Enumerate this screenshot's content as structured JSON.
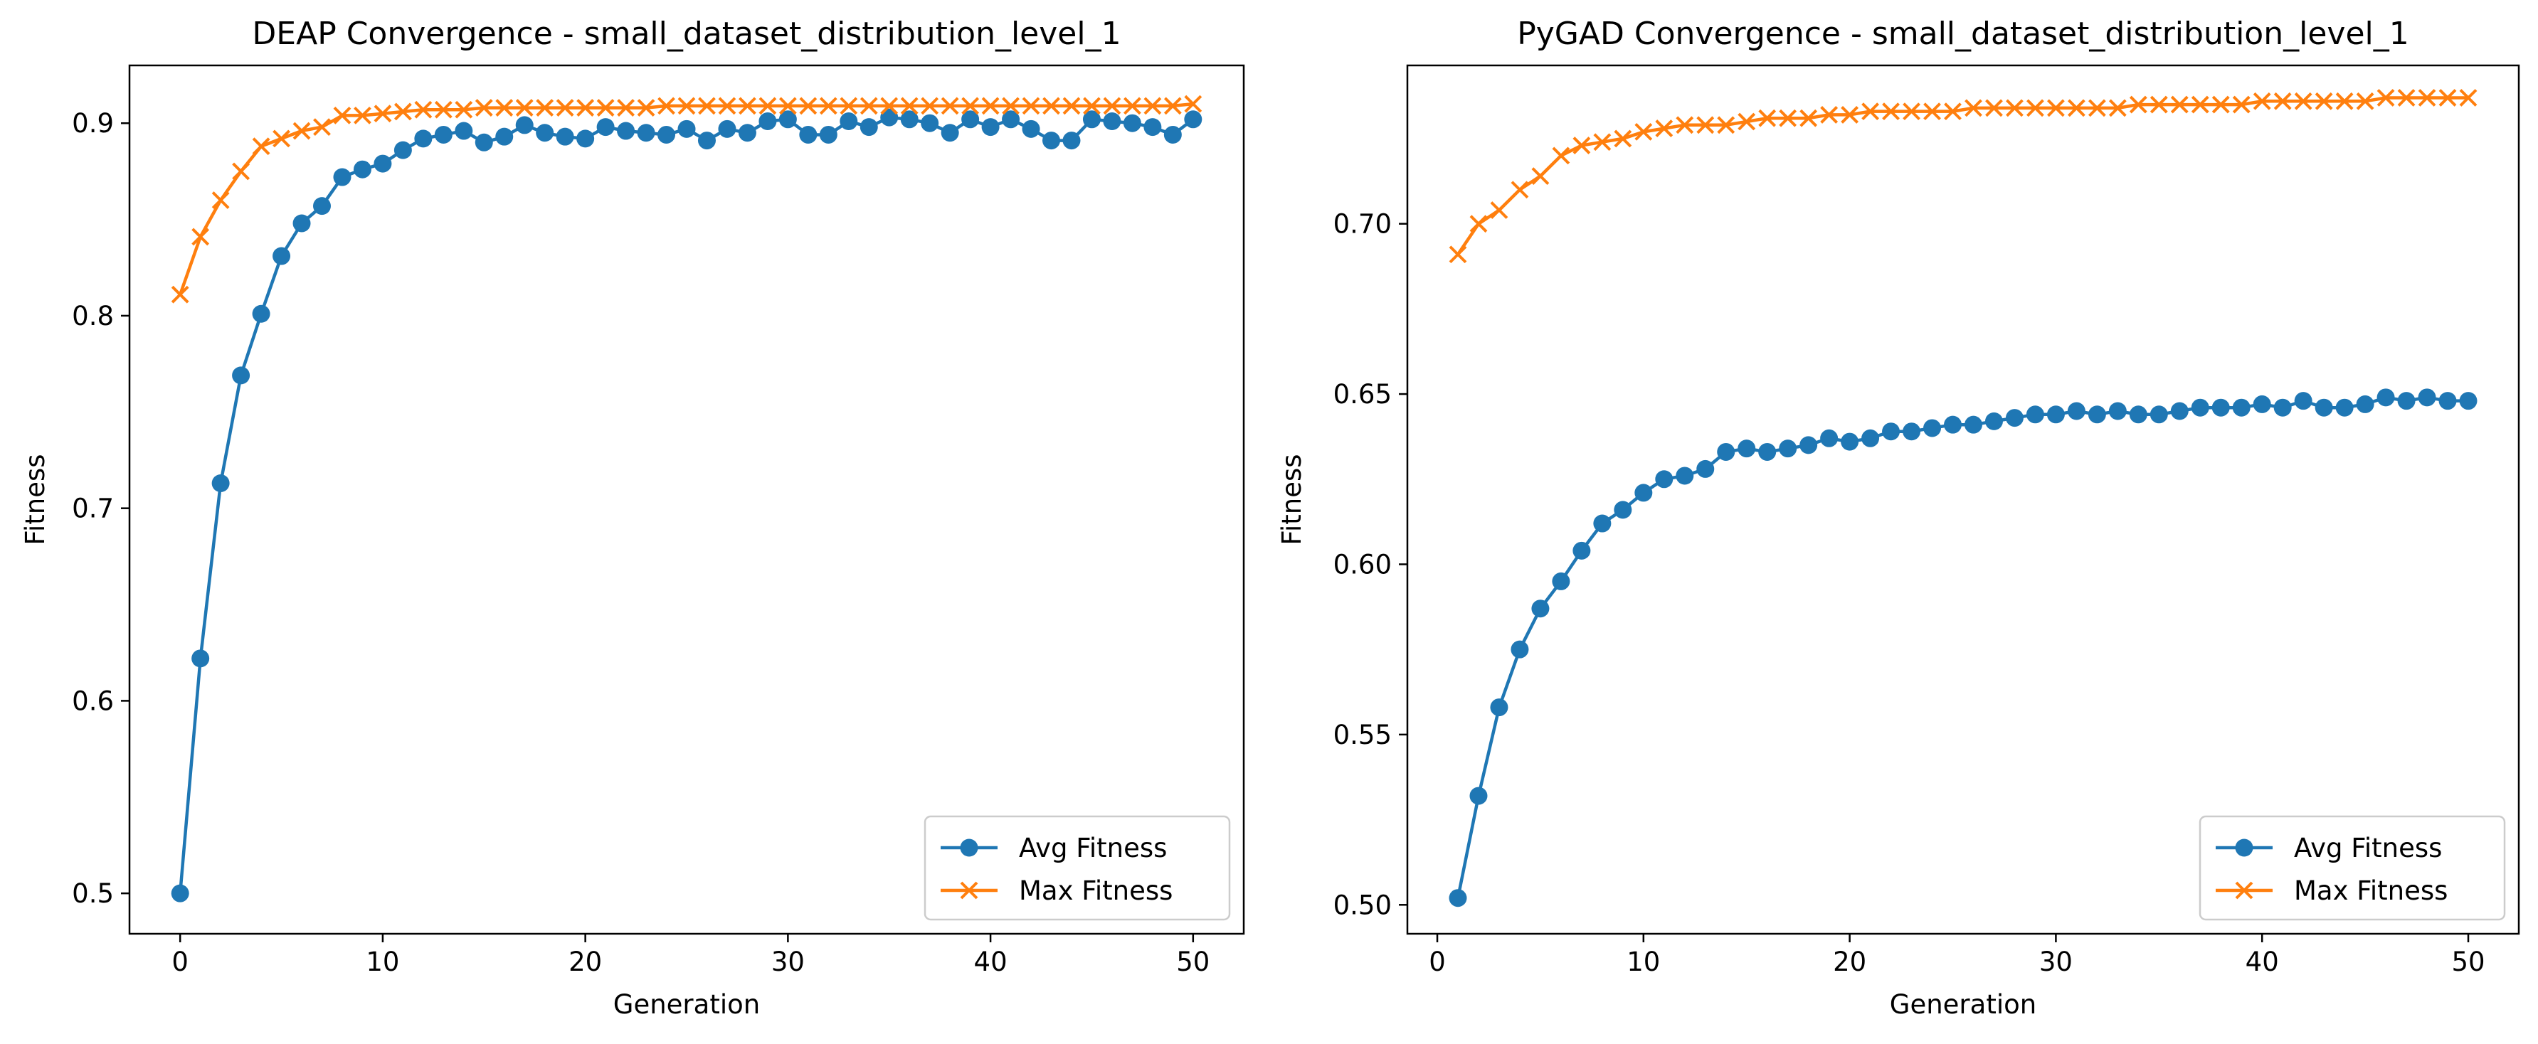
{
  "chart_data": [
    {
      "type": "line",
      "title": "DEAP Convergence - small_dataset_distribution_level_1",
      "xlabel": "Generation",
      "ylabel": "Fitness",
      "xlim": [
        -2.5,
        52.5
      ],
      "ylim": [
        0.479,
        0.93
      ],
      "xticks": [
        0,
        10,
        20,
        30,
        40,
        50
      ],
      "yticks": [
        0.5,
        0.6,
        0.7,
        0.8,
        0.9
      ],
      "grid": false,
      "legend": "lower-right",
      "x": [
        0,
        1,
        2,
        3,
        4,
        5,
        6,
        7,
        8,
        9,
        10,
        11,
        12,
        13,
        14,
        15,
        16,
        17,
        18,
        19,
        20,
        21,
        22,
        23,
        24,
        25,
        26,
        27,
        28,
        29,
        30,
        31,
        32,
        33,
        34,
        35,
        36,
        37,
        38,
        39,
        40,
        41,
        42,
        43,
        44,
        45,
        46,
        47,
        48,
        49,
        50
      ],
      "series": [
        {
          "name": "Avg Fitness",
          "color": "#1f77b4",
          "marker": "circle",
          "values": [
            0.5,
            0.622,
            0.713,
            0.769,
            0.801,
            0.831,
            0.848,
            0.857,
            0.872,
            0.876,
            0.879,
            0.886,
            0.892,
            0.894,
            0.896,
            0.89,
            0.893,
            0.899,
            0.895,
            0.893,
            0.892,
            0.898,
            0.896,
            0.895,
            0.894,
            0.897,
            0.891,
            0.897,
            0.895,
            0.901,
            0.902,
            0.894,
            0.894,
            0.901,
            0.898,
            0.903,
            0.902,
            0.9,
            0.895,
            0.902,
            0.898,
            0.902,
            0.897,
            0.891,
            0.891,
            0.902,
            0.901,
            0.9,
            0.898,
            0.894,
            0.902
          ]
        },
        {
          "name": "Max Fitness",
          "color": "#ff7f0e",
          "marker": "x",
          "values": [
            0.811,
            0.841,
            0.86,
            0.875,
            0.888,
            0.892,
            0.896,
            0.898,
            0.904,
            0.904,
            0.905,
            0.906,
            0.907,
            0.907,
            0.907,
            0.908,
            0.908,
            0.908,
            0.908,
            0.908,
            0.908,
            0.908,
            0.908,
            0.908,
            0.909,
            0.909,
            0.909,
            0.909,
            0.909,
            0.909,
            0.909,
            0.909,
            0.909,
            0.909,
            0.909,
            0.909,
            0.909,
            0.909,
            0.909,
            0.909,
            0.909,
            0.909,
            0.909,
            0.909,
            0.909,
            0.909,
            0.909,
            0.909,
            0.909,
            0.909,
            0.91
          ]
        }
      ]
    },
    {
      "type": "line",
      "title": "PyGAD Convergence - small_dataset_distribution_level_1",
      "xlabel": "Generation",
      "ylabel": "Fitness",
      "xlim": [
        -1.45,
        52.45
      ],
      "ylim": [
        0.4915,
        0.7465
      ],
      "xticks": [
        0,
        10,
        20,
        30,
        40,
        50
      ],
      "yticks": [
        0.5,
        0.55,
        0.6,
        0.65,
        0.7
      ],
      "grid": false,
      "legend": "lower-right",
      "x": [
        1,
        2,
        3,
        4,
        5,
        6,
        7,
        8,
        9,
        10,
        11,
        12,
        13,
        14,
        15,
        16,
        17,
        18,
        19,
        20,
        21,
        22,
        23,
        24,
        25,
        26,
        27,
        28,
        29,
        30,
        31,
        32,
        33,
        34,
        35,
        36,
        37,
        38,
        39,
        40,
        41,
        42,
        43,
        44,
        45,
        46,
        47,
        48,
        49,
        50
      ],
      "series": [
        {
          "name": "Avg Fitness",
          "color": "#1f77b4",
          "marker": "circle",
          "values": [
            0.502,
            0.532,
            0.558,
            0.575,
            0.587,
            0.595,
            0.604,
            0.612,
            0.616,
            0.621,
            0.625,
            0.626,
            0.628,
            0.633,
            0.634,
            0.633,
            0.634,
            0.635,
            0.637,
            0.636,
            0.637,
            0.639,
            0.639,
            0.64,
            0.641,
            0.641,
            0.642,
            0.643,
            0.644,
            0.644,
            0.645,
            0.644,
            0.645,
            0.644,
            0.644,
            0.645,
            0.646,
            0.646,
            0.646,
            0.647,
            0.646,
            0.648,
            0.646,
            0.646,
            0.647,
            0.649,
            0.648,
            0.649,
            0.648,
            0.648
          ]
        },
        {
          "name": "Max Fitness",
          "color": "#ff7f0e",
          "marker": "x",
          "values": [
            0.691,
            0.7,
            0.704,
            0.71,
            0.714,
            0.72,
            0.723,
            0.724,
            0.725,
            0.727,
            0.728,
            0.729,
            0.729,
            0.729,
            0.73,
            0.731,
            0.731,
            0.731,
            0.732,
            0.732,
            0.733,
            0.733,
            0.733,
            0.733,
            0.733,
            0.734,
            0.734,
            0.734,
            0.734,
            0.734,
            0.734,
            0.734,
            0.734,
            0.735,
            0.735,
            0.735,
            0.735,
            0.735,
            0.735,
            0.736,
            0.736,
            0.736,
            0.736,
            0.736,
            0.736,
            0.737,
            0.737,
            0.737,
            0.737,
            0.737
          ]
        }
      ]
    }
  ]
}
